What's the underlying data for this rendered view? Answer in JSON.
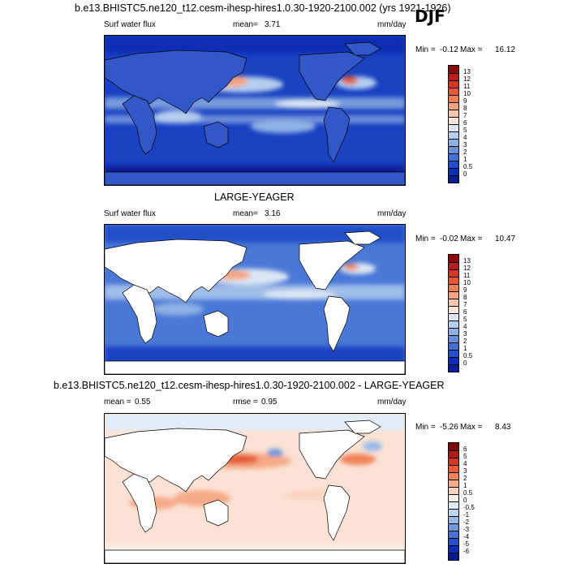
{
  "season": "DJF",
  "panel1": {
    "title": "b.e13.BHISTC5.ne120_t12.cesm-ihesp-hires1.0.30-1920-2100.002 (yrs 1921-1926)",
    "left_label": "Surf water flux",
    "mean_label": "mean=",
    "mean_value": "3.71",
    "units": "mm/day",
    "min_label": "Min =",
    "min_value": "-0.12",
    "max_label": "Max =",
    "max_value": "16.12",
    "levels": [
      "13",
      "12",
      "11",
      "10",
      "9",
      "8",
      "7",
      "6",
      "5",
      "4",
      "3",
      "2",
      "1",
      "0.5",
      "0"
    ],
    "colors": [
      "#8b0d0b",
      "#b2201b",
      "#d03b25",
      "#e25b35",
      "#ee8056",
      "#f5a47f",
      "#f8c6ae",
      "#fae4d8",
      "#dbe6f5",
      "#b5cdee",
      "#8eb1e4",
      "#6791da",
      "#4170d4",
      "#2150c8",
      "#0b2fb4",
      "#071e94"
    ]
  },
  "panel2": {
    "title": "LARGE-YEAGER",
    "left_label": "Surf water flux",
    "mean_label": "mean=",
    "mean_value": "3.16",
    "units": "mm/day",
    "min_label": "Min =",
    "min_value": "-0.02",
    "max_label": "Max =",
    "max_value": "10.47",
    "levels": [
      "13",
      "12",
      "11",
      "10",
      "9",
      "8",
      "7",
      "6",
      "5",
      "4",
      "3",
      "2",
      "1",
      "0.5",
      "0"
    ],
    "colors": [
      "#8b0d0b",
      "#b2201b",
      "#d03b25",
      "#e25b35",
      "#ee8056",
      "#f5a47f",
      "#f8c6ae",
      "#fae4d8",
      "#dbe6f5",
      "#b5cdee",
      "#8eb1e4",
      "#6791da",
      "#4170d4",
      "#2150c8",
      "#0b2fb4",
      "#071e94"
    ]
  },
  "panel3": {
    "title": "b.e13.BHISTC5.ne120_t12.cesm-ihesp-hires1.0.30-1920-2100.002 - LARGE-YEAGER",
    "mean_label": "mean =",
    "mean_value": "0.55",
    "rmse_label": "rmse =",
    "rmse_value": "0.95",
    "units": "mm/day",
    "min_label": "Min =",
    "min_value": "-5.26",
    "max_label": "Max =",
    "max_value": "8.43",
    "levels": [
      "6",
      "5",
      "4",
      "3",
      "2",
      "1",
      "0.5",
      "0",
      "-0.5",
      "-1",
      "-2",
      "-3",
      "-4",
      "-5",
      "-6"
    ],
    "colors": [
      "#7a0a08",
      "#ac1d16",
      "#cf3a22",
      "#e45c35",
      "#f08259",
      "#f6aa88",
      "#fad3bf",
      "#fbeee6",
      "#e2ecf8",
      "#bed5f1",
      "#96b9e7",
      "#6f98dc",
      "#4673d3",
      "#2450c6",
      "#0c2fb0",
      "#061b8c"
    ]
  }
}
